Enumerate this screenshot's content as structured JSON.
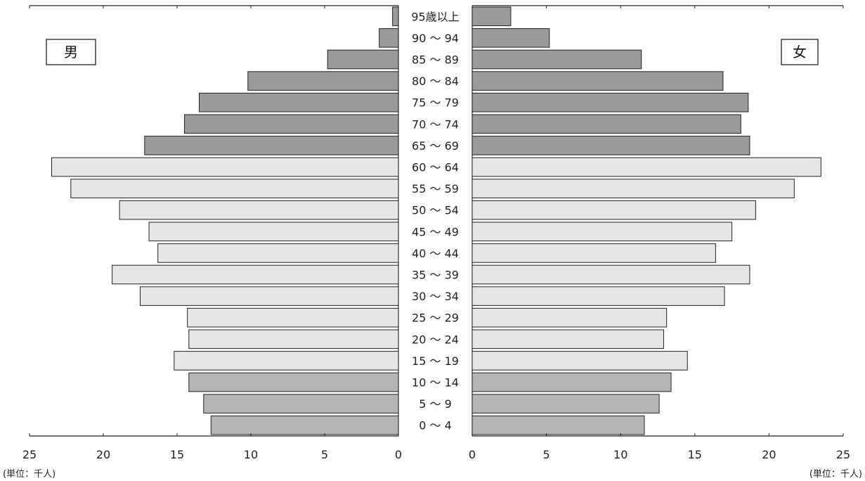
{
  "chart_data": {
    "type": "bar",
    "orientation": "horizontal-population-pyramid",
    "categories": [
      "95歳以上",
      "90 〜 94",
      "85 〜 89",
      "80 〜 84",
      "75 〜 79",
      "70 〜 74",
      "65 〜 69",
      "60 〜 64",
      "55 〜 59",
      "50 〜 54",
      "45 〜 49",
      "40 〜 44",
      "35 〜 39",
      "30 〜 34",
      "25 〜 29",
      "20 〜 24",
      "15 〜 19",
      "10 〜 14",
      "5 〜 9",
      "0 〜 4"
    ],
    "category_group": [
      "elderly",
      "elderly",
      "elderly",
      "elderly",
      "elderly",
      "elderly",
      "elderly",
      "working",
      "working",
      "working",
      "working",
      "working",
      "working",
      "working",
      "working",
      "working",
      "working",
      "child",
      "child",
      "child"
    ],
    "series": [
      {
        "name": "男",
        "side": "left",
        "values": [
          0.4,
          1.3,
          4.8,
          10.2,
          13.5,
          14.5,
          17.2,
          23.5,
          22.2,
          18.9,
          16.9,
          16.3,
          19.4,
          17.5,
          14.3,
          14.2,
          15.2,
          14.2,
          13.2,
          12.7
        ]
      },
      {
        "name": "女",
        "side": "right",
        "values": [
          2.6,
          5.2,
          11.4,
          16.9,
          18.6,
          18.1,
          18.7,
          23.5,
          21.7,
          19.1,
          17.5,
          16.4,
          18.7,
          17.0,
          13.1,
          12.9,
          14.5,
          13.4,
          12.6,
          11.6
        ]
      }
    ],
    "xlim": [
      0,
      25
    ],
    "x_ticks": [
      25,
      20,
      15,
      10,
      5,
      0
    ],
    "unit_left": "(単位：千人)",
    "unit_right": "(単位：千人)",
    "colors": {
      "elderly": "#9a9a9a",
      "working": "#e6e6e6",
      "child": "#b5b5b5",
      "edge": "#222222"
    }
  }
}
